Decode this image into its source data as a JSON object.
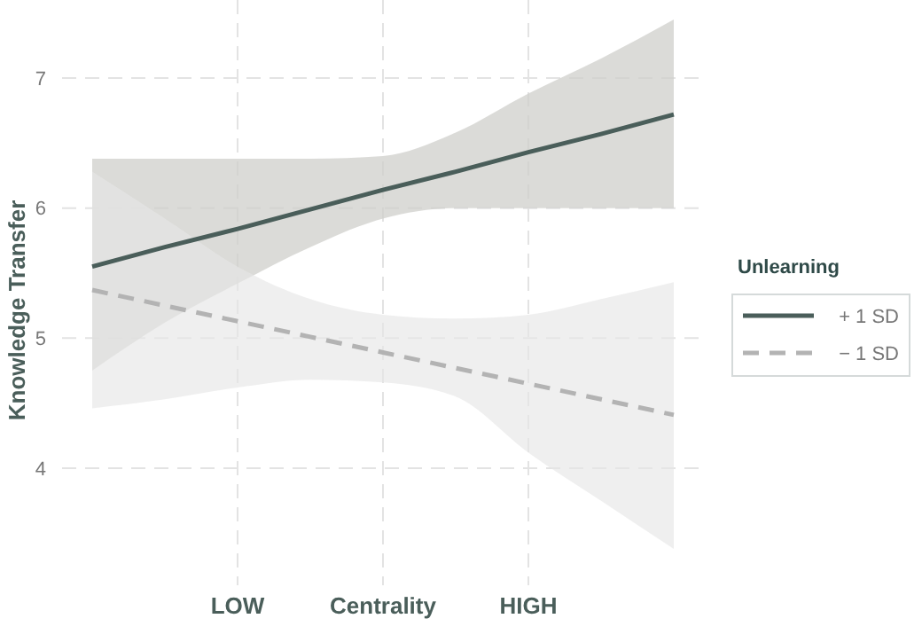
{
  "chart_data": {
    "type": "line",
    "ylabel": "Knowledge Transfer",
    "legend_title": "Unlearning",
    "legend": "right",
    "grid": true,
    "marker": "none",
    "categories": [
      null,
      null,
      "LOW",
      null,
      "Centrality",
      null,
      "HIGH",
      null,
      null
    ],
    "ylim": [
      3.1,
      7.6
    ],
    "yticks": [
      4,
      5,
      6,
      7
    ],
    "series": [
      {
        "name": "+ 1 SD",
        "color": "#4a5e5a",
        "line_style": "solid",
        "values": [
          5.55,
          5.7,
          5.84,
          5.99,
          6.14,
          6.28,
          6.43,
          6.57,
          6.72
        ],
        "lower": [
          4.75,
          5.12,
          5.42,
          5.7,
          5.92,
          6.0,
          6.0,
          6.0,
          6.0
        ],
        "upper": [
          6.38,
          6.38,
          6.38,
          6.38,
          6.4,
          6.58,
          6.88,
          7.15,
          7.45
        ]
      },
      {
        "name": "− 1 SD",
        "color": "#b3b3b3",
        "line_style": "dashed",
        "values": [
          5.37,
          5.25,
          5.13,
          5.01,
          4.89,
          4.77,
          4.65,
          4.53,
          4.41
        ],
        "lower": [
          4.46,
          4.53,
          4.62,
          4.68,
          4.66,
          4.55,
          4.12,
          3.75,
          3.38
        ],
        "upper": [
          6.28,
          5.92,
          5.55,
          5.3,
          5.18,
          5.15,
          5.18,
          5.3,
          5.43
        ]
      }
    ]
  }
}
